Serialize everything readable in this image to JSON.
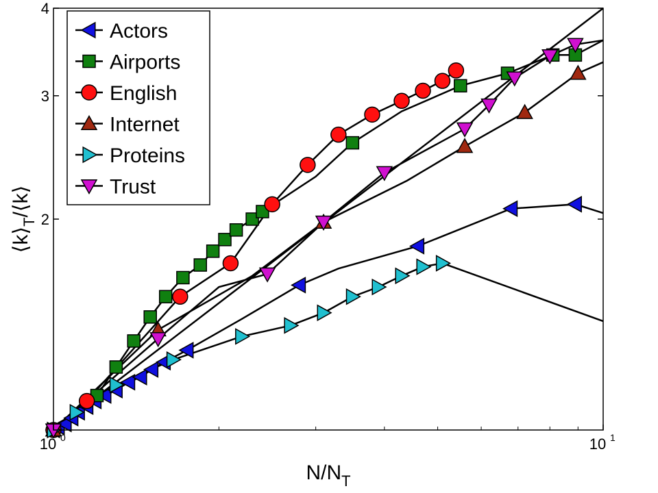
{
  "chart_data": {
    "type": "line",
    "xscale": "log",
    "yscale": "log",
    "xlim": [
      1,
      10
    ],
    "ylim": [
      1,
      4
    ],
    "xlabel": {
      "base": "N/N",
      "sub": "T"
    },
    "ylabel": {
      "part1": "⟨k⟩",
      "sub": "T",
      "part2": "/⟨k⟩"
    },
    "x_ticks": [
      {
        "value": 1,
        "base": "10",
        "exp": "0"
      },
      {
        "value": 10,
        "base": "10",
        "exp": "1"
      }
    ],
    "y_ticks": [
      {
        "value": 2,
        "label": "2"
      },
      {
        "value": 3,
        "label": "3"
      },
      {
        "value": 4,
        "label": "4"
      }
    ],
    "grid": false,
    "legend_position": "top-left",
    "series": [
      {
        "name": "Actors",
        "marker": "triangle-left",
        "color": "#1010e0",
        "x": [
          1.0,
          1.02,
          1.05,
          1.08,
          1.11,
          1.15,
          1.19,
          1.24,
          1.3,
          1.37,
          1.44,
          1.51,
          1.59,
          1.75,
          2.2,
          2.8,
          3.3,
          4.6,
          6.8,
          8.9,
          10.0
        ],
        "y": [
          1.0,
          1.01,
          1.02,
          1.04,
          1.06,
          1.08,
          1.1,
          1.12,
          1.14,
          1.17,
          1.19,
          1.22,
          1.25,
          1.3,
          1.44,
          1.61,
          1.7,
          1.83,
          2.07,
          2.1,
          2.04
        ],
        "marked": [
          true,
          true,
          true,
          true,
          true,
          true,
          true,
          true,
          true,
          true,
          true,
          true,
          true,
          true,
          false,
          true,
          false,
          true,
          true,
          true,
          false
        ]
      },
      {
        "name": "Airports",
        "marker": "square",
        "color": "#108010",
        "x": [
          1.0,
          1.2,
          1.3,
          1.4,
          1.5,
          1.6,
          1.72,
          1.85,
          1.95,
          2.05,
          2.15,
          2.3,
          2.4,
          3.0,
          3.5,
          4.3,
          5.5,
          6.7,
          8.1,
          8.9,
          10.0
        ],
        "y": [
          1.0,
          1.12,
          1.23,
          1.34,
          1.45,
          1.55,
          1.65,
          1.72,
          1.8,
          1.87,
          1.93,
          2.0,
          2.05,
          2.3,
          2.57,
          2.85,
          3.1,
          3.23,
          3.43,
          3.43,
          3.6
        ],
        "marked": [
          true,
          true,
          true,
          true,
          true,
          true,
          true,
          true,
          true,
          true,
          true,
          true,
          true,
          false,
          true,
          false,
          true,
          true,
          true,
          true,
          false
        ]
      },
      {
        "name": "English",
        "marker": "circle",
        "color": "#ff1010",
        "x": [
          1.0,
          1.15,
          1.7,
          2.1,
          2.5,
          2.9,
          3.3,
          3.8,
          4.3,
          4.7,
          5.1,
          5.4
        ],
        "y": [
          1.0,
          1.1,
          1.55,
          1.73,
          2.1,
          2.39,
          2.64,
          2.82,
          2.95,
          3.05,
          3.15,
          3.26
        ],
        "marked": [
          true,
          true,
          true,
          true,
          true,
          true,
          true,
          true,
          true,
          true,
          true,
          true
        ]
      },
      {
        "name": "Internet",
        "marker": "triangle-up",
        "color": "#a02810",
        "x": [
          1.0,
          1.55,
          2.3,
          3.1,
          4.4,
          5.6,
          7.2,
          9.0,
          10.0
        ],
        "y": [
          1.0,
          1.39,
          1.66,
          1.98,
          2.27,
          2.54,
          2.84,
          3.23,
          3.35
        ],
        "marked": [
          true,
          true,
          false,
          true,
          false,
          true,
          true,
          true,
          false
        ]
      },
      {
        "name": "Proteins",
        "marker": "triangle-right",
        "color": "#20c0d0",
        "x": [
          1.0,
          1.1,
          1.3,
          1.65,
          2.2,
          2.7,
          3.1,
          3.5,
          3.9,
          4.3,
          4.7,
          5.1,
          10.0
        ],
        "y": [
          1.0,
          1.06,
          1.16,
          1.26,
          1.36,
          1.41,
          1.47,
          1.55,
          1.6,
          1.66,
          1.71,
          1.73,
          1.43
        ],
        "marked": [
          true,
          true,
          true,
          true,
          true,
          true,
          true,
          true,
          true,
          true,
          true,
          true,
          false
        ]
      },
      {
        "name": "Trust",
        "marker": "triangle-down",
        "color": "#d010d0",
        "x": [
          1.0,
          1.55,
          2.0,
          2.45,
          3.1,
          4.0,
          5.6,
          6.2,
          6.9,
          8.0,
          8.9,
          10.0
        ],
        "y": [
          1.0,
          1.35,
          1.6,
          1.67,
          1.98,
          2.33,
          2.69,
          2.91,
          3.18,
          3.42,
          3.55,
          3.6
        ],
        "marked": [
          true,
          true,
          false,
          true,
          true,
          true,
          true,
          true,
          true,
          true,
          true,
          false
        ]
      }
    ],
    "reference_line": {
      "x": [
        1,
        10
      ],
      "y": [
        1,
        4
      ]
    }
  }
}
